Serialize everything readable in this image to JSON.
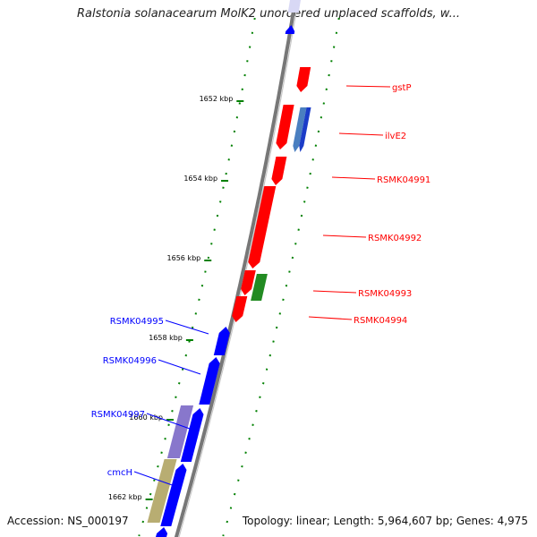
{
  "title": "Ralstonia solanacearum MolK2 unordered unplaced scaffolds, w...",
  "footer": {
    "accession": "Accession: NS_000197",
    "summary": "Topology: linear; Length: 5,964,607 bp; Genes: 4,975"
  },
  "colors": {
    "forward": "#ff0000",
    "reverse": "#0000ff",
    "green": "#228b22",
    "purple": "#8877cc",
    "khaki": "#b8ad72",
    "tick": "#008000",
    "backbone": "#777777"
  },
  "ticks": [
    {
      "label": "1652 kbp",
      "kbp": 1652
    },
    {
      "label": "1654 kbp",
      "kbp": 1654
    },
    {
      "label": "1656 kbp",
      "kbp": 1656
    },
    {
      "label": "1658 kbp",
      "kbp": 1658
    },
    {
      "label": "1660 kbp",
      "kbp": 1660
    },
    {
      "label": "1662 kbp",
      "kbp": 1662
    }
  ],
  "genes": [
    {
      "label": "gstP",
      "strand": "+",
      "color": "forward"
    },
    {
      "label": "ilvE2",
      "strand": "+",
      "color": "forward"
    },
    {
      "label": "RSMK04991",
      "strand": "+",
      "color": "forward"
    },
    {
      "label": "RSMK04992",
      "strand": "+",
      "color": "forward"
    },
    {
      "label": "RSMK04993",
      "strand": "+",
      "color": "forward"
    },
    {
      "label": "RSMK04994",
      "strand": "+",
      "color": "forward"
    },
    {
      "label": "RSMK04995",
      "strand": "-",
      "color": "reverse"
    },
    {
      "label": "RSMK04996",
      "strand": "-",
      "color": "reverse"
    },
    {
      "label": "RSMK04997",
      "strand": "-",
      "color": "reverse"
    },
    {
      "label": "cmcH",
      "strand": "-",
      "color": "reverse"
    }
  ]
}
